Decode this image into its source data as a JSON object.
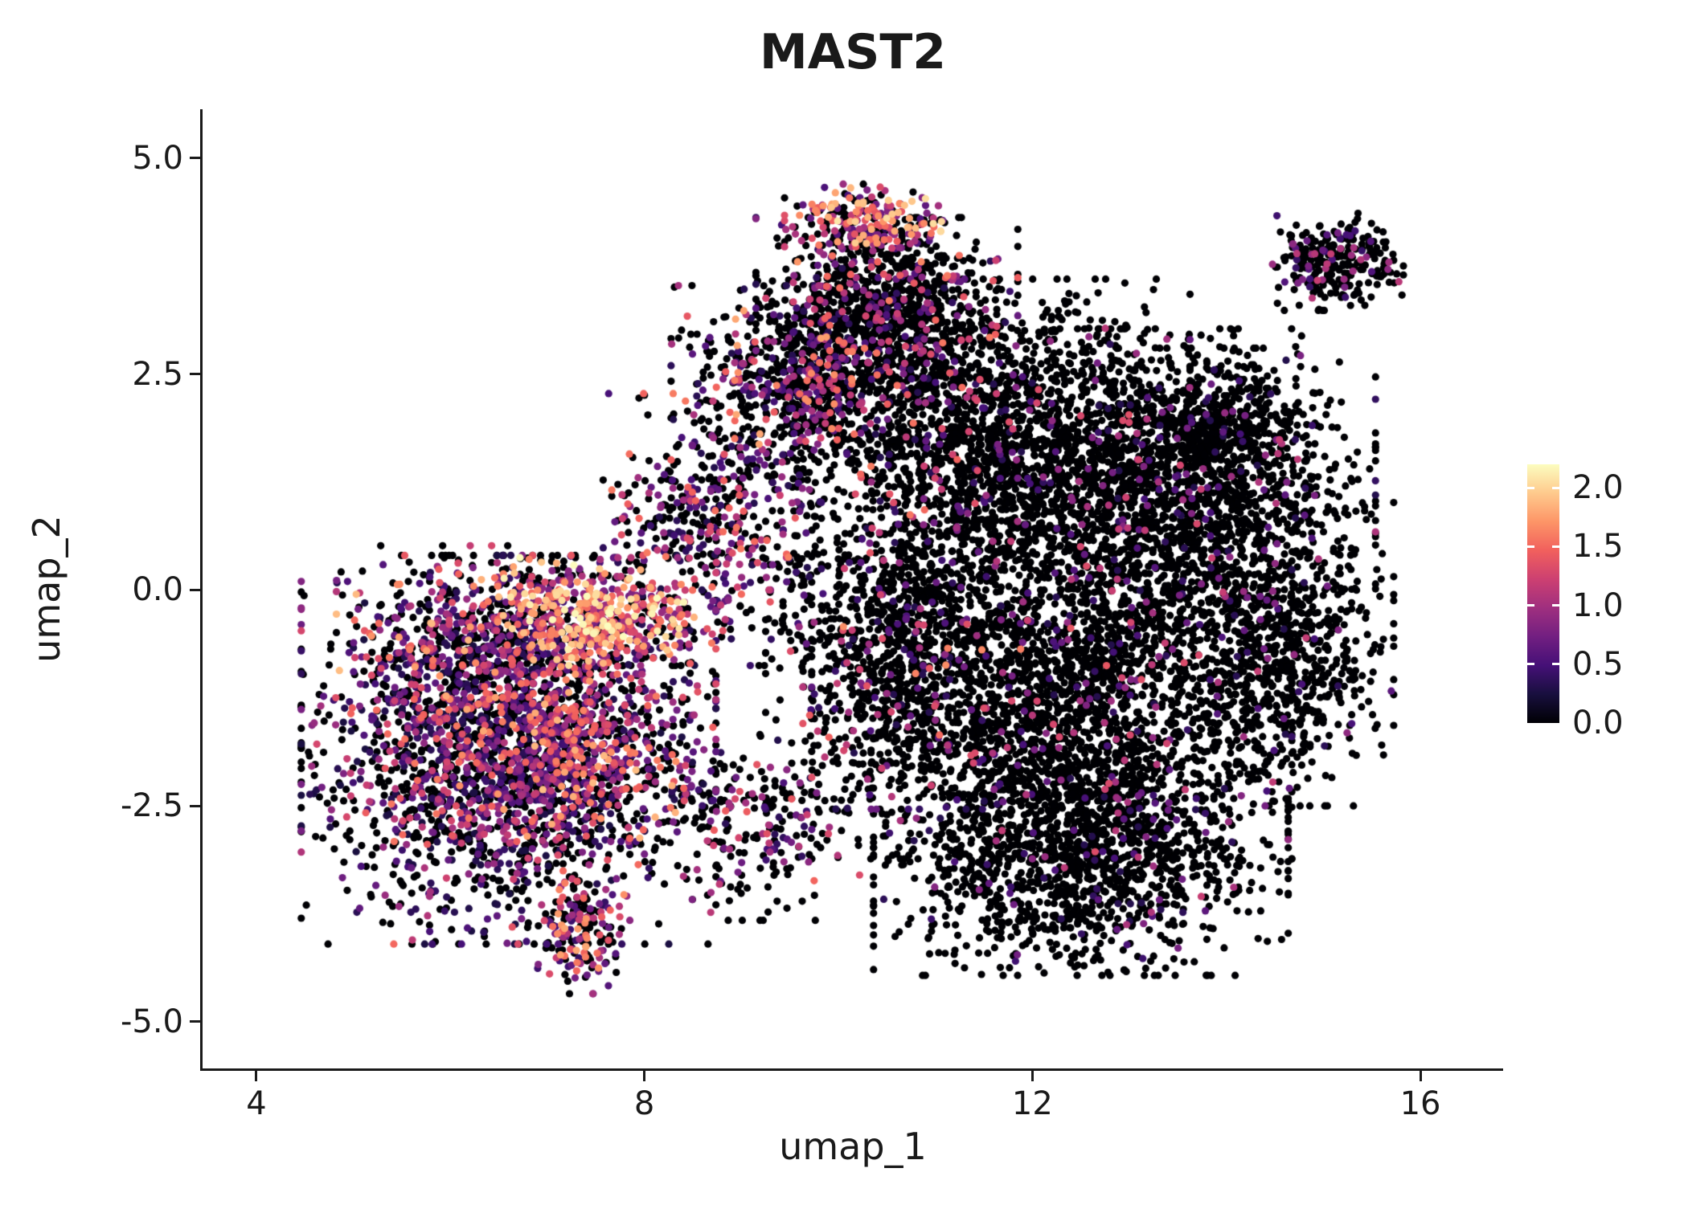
{
  "figure": {
    "title": "MAST2",
    "xlabel": "umap_1",
    "ylabel": "umap_2"
  },
  "chart_data": {
    "type": "scatter",
    "title": "MAST2",
    "xlabel": "umap_1",
    "ylabel": "umap_2",
    "xlim": [
      3.445,
      16.853
    ],
    "ylim": [
      -5.54,
      5.567
    ],
    "grid": false,
    "legend_position": "right-colorbar",
    "xticks": [
      {
        "value": 4,
        "label": "4"
      },
      {
        "value": 8,
        "label": "8"
      },
      {
        "value": 12,
        "label": "12"
      },
      {
        "value": 16,
        "label": "16"
      }
    ],
    "yticks": [
      {
        "value": 5.0,
        "label": "5.0"
      },
      {
        "value": 2.5,
        "label": "2.5"
      },
      {
        "value": 0.0,
        "label": "0.0"
      },
      {
        "value": -2.5,
        "label": "-2.5"
      },
      {
        "value": -5.0,
        "label": "-5.0"
      }
    ],
    "colorbar": {
      "vmin": 0.0,
      "vmax": 2.2,
      "colormap": "magma",
      "ticks": [
        {
          "value": 2.0,
          "label": "2.0"
        },
        {
          "value": 1.5,
          "label": "1.5"
        },
        {
          "value": 1.0,
          "label": "1.0"
        },
        {
          "value": 0.5,
          "label": "0.5"
        },
        {
          "value": 0.0,
          "label": "0.0"
        }
      ],
      "stops": [
        "#000004",
        "#180f3e",
        "#451077",
        "#721f81",
        "#9f2f7f",
        "#cd4071",
        "#f1605d",
        "#fd9567",
        "#feca8d",
        "#fcfdbf"
      ]
    },
    "point_radius_px": 4.6,
    "seed": 42,
    "clusters": [
      {
        "name": "left-lobe",
        "cx": 6.6,
        "cy": -1.85,
        "sx": 0.95,
        "sy": 1.0,
        "n": 2400,
        "p0": 0.52,
        "lo": 0.25,
        "hi": 1.6,
        "skew": 1.6
      },
      {
        "name": "left-hotspot",
        "cx": 7.5,
        "cy": -0.3,
        "sx": 0.45,
        "sy": 0.3,
        "n": 430,
        "p0": 0.12,
        "lo": 0.6,
        "hi": 2.2,
        "skew": 0.9
      },
      {
        "name": "left-upper",
        "cx": 6.4,
        "cy": -0.5,
        "sx": 0.7,
        "sy": 0.45,
        "n": 420,
        "p0": 0.4,
        "lo": 0.3,
        "hi": 1.9,
        "skew": 1.4
      },
      {
        "name": "left-mid-hot",
        "cx": 7.2,
        "cy": -1.9,
        "sx": 0.55,
        "sy": 0.45,
        "n": 420,
        "p0": 0.3,
        "lo": 0.3,
        "hi": 1.9,
        "skew": 1.3
      },
      {
        "name": "neck",
        "cx": 8.7,
        "cy": 0.7,
        "sx": 0.5,
        "sy": 0.7,
        "n": 480,
        "p0": 0.5,
        "lo": 0.3,
        "hi": 1.6,
        "skew": 1.5
      },
      {
        "name": "upper-mid",
        "cx": 9.4,
        "cy": 2.4,
        "sx": 0.5,
        "sy": 0.5,
        "n": 420,
        "p0": 0.6,
        "lo": 0.3,
        "hi": 1.8,
        "skew": 1.4
      },
      {
        "name": "top-tip",
        "cx": 10.3,
        "cy": 4.25,
        "sx": 0.38,
        "sy": 0.2,
        "n": 240,
        "p0": 0.3,
        "lo": 0.5,
        "hi": 2.1,
        "skew": 1.1
      },
      {
        "name": "top-body",
        "cx": 10.5,
        "cy": 3.3,
        "sx": 0.6,
        "sy": 0.45,
        "n": 780,
        "p0": 0.8,
        "lo": 0.3,
        "hi": 1.6,
        "skew": 1.5
      },
      {
        "name": "main-upper",
        "cx": 11.6,
        "cy": 1.8,
        "sx": 0.9,
        "sy": 0.8,
        "n": 1600,
        "p0": 0.92,
        "lo": 0.3,
        "hi": 1.4,
        "skew": 1.5
      },
      {
        "name": "main-right-upper",
        "cx": 13.4,
        "cy": 1.0,
        "sx": 0.95,
        "sy": 0.9,
        "n": 1800,
        "p0": 0.93,
        "lo": 0.3,
        "hi": 1.3,
        "skew": 1.5
      },
      {
        "name": "main-mid",
        "cx": 12.2,
        "cy": -1.2,
        "sx": 1.1,
        "sy": 0.85,
        "n": 2000,
        "p0": 0.92,
        "lo": 0.3,
        "hi": 1.4,
        "skew": 1.5
      },
      {
        "name": "main-bottom",
        "cx": 12.5,
        "cy": -3.0,
        "sx": 0.95,
        "sy": 0.65,
        "n": 1500,
        "p0": 0.94,
        "lo": 0.3,
        "hi": 1.2,
        "skew": 1.5
      },
      {
        "name": "mid-column",
        "cx": 10.6,
        "cy": -0.4,
        "sx": 0.6,
        "sy": 0.95,
        "n": 900,
        "p0": 0.85,
        "lo": 0.3,
        "hi": 1.7,
        "skew": 1.4
      },
      {
        "name": "right-edge",
        "cx": 14.6,
        "cy": -0.7,
        "sx": 0.5,
        "sy": 0.8,
        "n": 700,
        "p0": 0.94,
        "lo": 0.3,
        "hi": 1.2,
        "skew": 1.5
      },
      {
        "name": "main-top-right",
        "cx": 13.9,
        "cy": 1.9,
        "sx": 0.45,
        "sy": 0.4,
        "n": 400,
        "p0": 0.94,
        "lo": 0.3,
        "hi": 1.2,
        "skew": 1.5
      },
      {
        "name": "satellite",
        "cx": 15.15,
        "cy": 3.8,
        "sx": 0.3,
        "sy": 0.25,
        "n": 270,
        "p0": 0.85,
        "lo": 0.4,
        "hi": 1.2,
        "skew": 1.3
      },
      {
        "name": "bottom-tail",
        "cx": 7.35,
        "cy": -4.0,
        "sx": 0.2,
        "sy": 0.3,
        "n": 160,
        "p0": 0.5,
        "lo": 0.4,
        "hi": 1.8,
        "skew": 1.3
      },
      {
        "name": "bridge",
        "cx": 9.2,
        "cy": -2.7,
        "sx": 0.6,
        "sy": 0.5,
        "n": 260,
        "p0": 0.68,
        "lo": 0.3,
        "hi": 1.5,
        "skew": 1.4
      },
      {
        "name": "upper-bridge",
        "cx": 10.1,
        "cy": 2.6,
        "sx": 0.5,
        "sy": 0.6,
        "n": 500,
        "p0": 0.75,
        "lo": 0.3,
        "hi": 1.6,
        "skew": 1.4
      }
    ]
  }
}
